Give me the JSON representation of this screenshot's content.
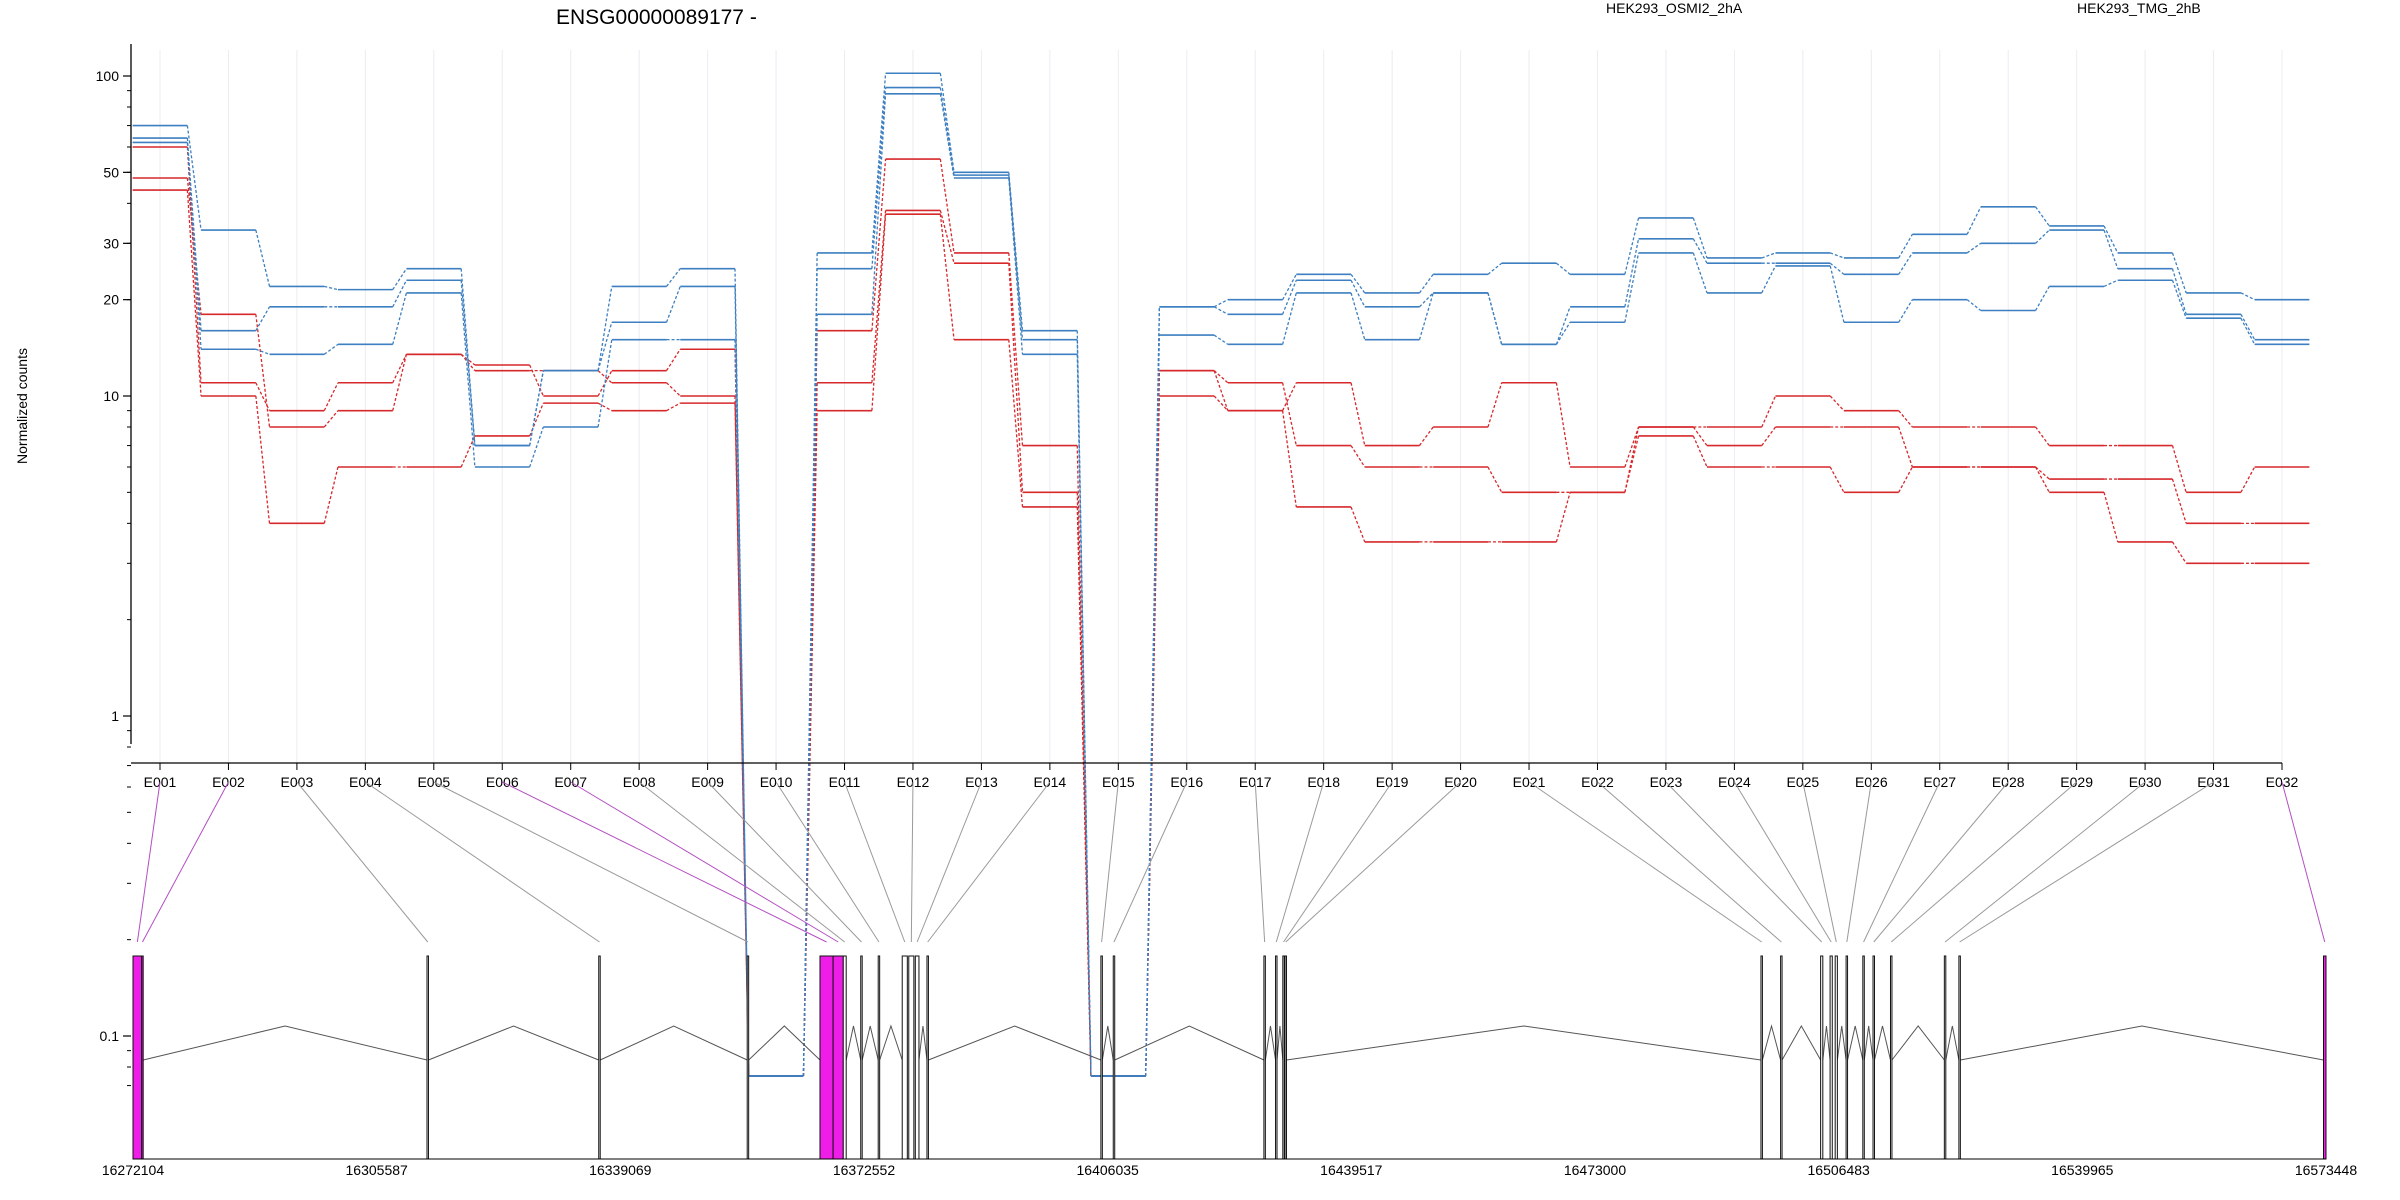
{
  "chart_data": {
    "type": "line",
    "title": "ENSG00000089177 -",
    "ylabel": "Normalized counts",
    "yscale": "log",
    "ylim": [
      0.07,
      130
    ],
    "yticks": [
      "100",
      "50",
      "30",
      "20",
      "10",
      "1",
      "0.1"
    ],
    "ytick_values": [
      100,
      50,
      30,
      20,
      10,
      1,
      0.1
    ],
    "categories": [
      "E001",
      "E002",
      "E003",
      "E004",
      "E005",
      "E006",
      "E007",
      "E008",
      "E009",
      "E010",
      "E011",
      "E012",
      "E013",
      "E014",
      "E015",
      "E016",
      "E017",
      "E018",
      "E019",
      "E020",
      "E021",
      "E022",
      "E023",
      "E024",
      "E025",
      "E026",
      "E027",
      "E028",
      "E029",
      "E030",
      "E031",
      "E032"
    ],
    "legend": [
      {
        "label": "HEK293_OSMI2_2hA",
        "color": "#d7282b"
      },
      {
        "label": "HEK293_TMG_2hB",
        "color": "#3d7fc0"
      }
    ],
    "series": [
      {
        "group": "red",
        "color": "#d7282b",
        "values": [
          60,
          11,
          9,
          11,
          13.5,
          12.5,
          10,
          12,
          14,
          0.075,
          16,
          55,
          28,
          7,
          0.075,
          12,
          9,
          11,
          7,
          8,
          11,
          6,
          8,
          8,
          10,
          9,
          8,
          8,
          7,
          7,
          5,
          6
        ]
      },
      {
        "group": "red",
        "color": "#d7282b",
        "values": [
          48,
          18,
          8,
          9,
          13.5,
          12,
          12,
          11,
          10,
          0.075,
          11,
          38,
          26,
          5,
          0.075,
          12,
          11,
          7,
          6,
          6,
          5,
          5,
          8,
          7,
          8,
          8,
          6,
          6,
          5.5,
          5.5,
          4,
          4
        ]
      },
      {
        "group": "red",
        "color": "#d7282b",
        "values": [
          44,
          10,
          4,
          6,
          6,
          7.5,
          9.5,
          9,
          9.5,
          0.075,
          9,
          37,
          15,
          4.5,
          0.075,
          10,
          9,
          4.5,
          3.5,
          3.5,
          3.5,
          5,
          7.5,
          6,
          6,
          5,
          6,
          6,
          5,
          3.5,
          3,
          3
        ]
      },
      {
        "group": "blue",
        "color": "#3d7fc0",
        "values": [
          70,
          33,
          22,
          21.5,
          25,
          7,
          12,
          22,
          25,
          0.075,
          28,
          102,
          50,
          16,
          0.075,
          19,
          20,
          24,
          21,
          24,
          26,
          24,
          36,
          27,
          28,
          27,
          32,
          39,
          34,
          28,
          21,
          20
        ]
      },
      {
        "group": "blue",
        "color": "#3d7fc0",
        "values": [
          64,
          16,
          19,
          19,
          23,
          7,
          12,
          17,
          22,
          0.075,
          25,
          92,
          49,
          15,
          0.075,
          19,
          18,
          23,
          19,
          21,
          14.5,
          19,
          31,
          26,
          26,
          24,
          28,
          30,
          33,
          25,
          18,
          15
        ]
      },
      {
        "group": "blue",
        "color": "#3d7fc0",
        "values": [
          62,
          14,
          13.5,
          14.5,
          21,
          6,
          8,
          15,
          15,
          0.075,
          18,
          88,
          48,
          13.5,
          0.075,
          15.5,
          14.5,
          21,
          15,
          21,
          14.5,
          17,
          28,
          21,
          25.5,
          17,
          20,
          18.5,
          22,
          23,
          17.5,
          14.5
        ]
      }
    ],
    "x_axis_genomic": {
      "ticks": [
        "16272104",
        "16305587",
        "16339069",
        "16372552",
        "16406035",
        "16439517",
        "16473000",
        "16506483",
        "16539965",
        "16573448"
      ],
      "tick_values": [
        16272104,
        16305587,
        16339069,
        16372552,
        16406035,
        16439517,
        16473000,
        16506483,
        16539965,
        16573448
      ]
    },
    "gene_model": {
      "exons": [
        {
          "id": "E001",
          "start": 16272104,
          "end": 16273304,
          "highlight": true
        },
        {
          "id": "E002",
          "start": 16273304,
          "end": 16273504,
          "highlight": true
        },
        {
          "id": "E003",
          "start": 16312504,
          "end": 16312704,
          "highlight": false
        },
        {
          "id": "E004",
          "start": 16336104,
          "end": 16336304,
          "highlight": false
        },
        {
          "id": "E005",
          "start": 16356504,
          "end": 16356704,
          "highlight": false
        },
        {
          "id": "E006",
          "start": 16366504,
          "end": 16368304,
          "highlight": true
        },
        {
          "id": "E007",
          "start": 16368304,
          "end": 16369704,
          "highlight": true
        },
        {
          "id": "E008",
          "start": 16369704,
          "end": 16370104,
          "highlight": false
        },
        {
          "id": "E009",
          "start": 16372104,
          "end": 16372304,
          "highlight": false
        },
        {
          "id": "E010",
          "start": 16374504,
          "end": 16374704,
          "highlight": false
        },
        {
          "id": "E011",
          "start": 16377804,
          "end": 16378504,
          "highlight": false
        },
        {
          "id": "E012",
          "start": 16378704,
          "end": 16379404,
          "highlight": false
        },
        {
          "id": "E013",
          "start": 16379604,
          "end": 16380104,
          "highlight": false
        },
        {
          "id": "E014",
          "start": 16381204,
          "end": 16381404,
          "highlight": false
        },
        {
          "id": "E015",
          "start": 16405104,
          "end": 16405304,
          "highlight": false
        },
        {
          "id": "E016",
          "start": 16406804,
          "end": 16407004,
          "highlight": false
        },
        {
          "id": "E017",
          "start": 16427504,
          "end": 16427704,
          "highlight": false
        },
        {
          "id": "E018",
          "start": 16429104,
          "end": 16429304,
          "highlight": false
        },
        {
          "id": "E019",
          "start": 16430104,
          "end": 16430304,
          "highlight": false
        },
        {
          "id": "E020",
          "start": 16430404,
          "end": 16430604,
          "highlight": false
        },
        {
          "id": "E021",
          "start": 16495804,
          "end": 16496004,
          "highlight": false
        },
        {
          "id": "E022",
          "start": 16498504,
          "end": 16498704,
          "highlight": false
        },
        {
          "id": "E023",
          "start": 16504004,
          "end": 16504304,
          "highlight": false
        },
        {
          "id": "E024",
          "start": 16505304,
          "end": 16505604,
          "highlight": false
        },
        {
          "id": "E025",
          "start": 16506004,
          "end": 16506304,
          "highlight": false
        },
        {
          "id": "E026",
          "start": 16507504,
          "end": 16507704,
          "highlight": false
        },
        {
          "id": "E027",
          "start": 16509804,
          "end": 16510004,
          "highlight": false
        },
        {
          "id": "E028",
          "start": 16511204,
          "end": 16511404,
          "highlight": false
        },
        {
          "id": "E029",
          "start": 16513604,
          "end": 16513804,
          "highlight": false
        },
        {
          "id": "E030",
          "start": 16521004,
          "end": 16521204,
          "highlight": false
        },
        {
          "id": "E031",
          "start": 16523004,
          "end": 16523204,
          "highlight": false
        },
        {
          "id": "E032",
          "start": 16573104,
          "end": 16573448,
          "highlight": true
        }
      ]
    }
  }
}
